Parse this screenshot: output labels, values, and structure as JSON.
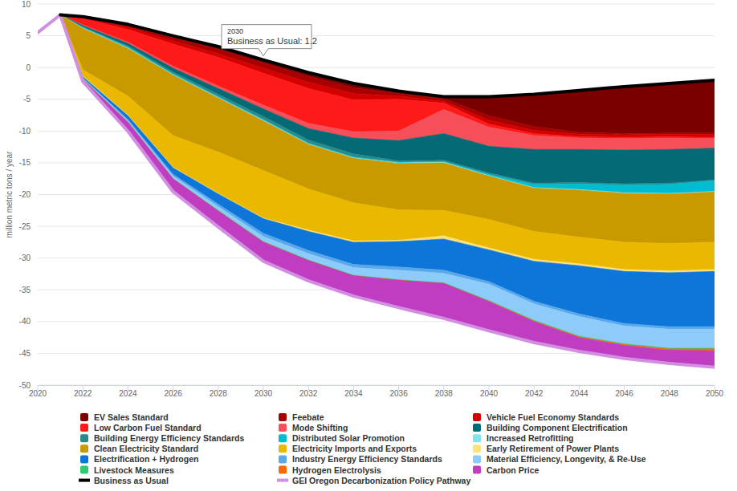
{
  "chart_data": {
    "type": "area",
    "stacked": true,
    "grid": true,
    "legend": "bottom",
    "y_label": "million metric tons / year",
    "x": [
      2020,
      2021,
      2022,
      2024,
      2026,
      2028,
      2030,
      2032,
      2034,
      2036,
      2038,
      2040,
      2042,
      2044,
      2046,
      2048,
      2050
    ],
    "xlim": [
      2020,
      2050
    ],
    "xticks": [
      2020,
      2022,
      2024,
      2026,
      2028,
      2030,
      2032,
      2034,
      2036,
      2038,
      2040,
      2042,
      2044,
      2046,
      2048,
      2050
    ],
    "ylim": [
      -50,
      10
    ],
    "yticks": [
      -50,
      -45,
      -40,
      -35,
      -30,
      -25,
      -20,
      -15,
      -10,
      -5,
      0,
      5,
      10
    ],
    "annotations": [
      {
        "x": 2030,
        "y": 1.2,
        "lines": [
          "2030",
          "Business as Usual: 1.2"
        ]
      }
    ],
    "series": [
      {
        "name": "EV Sales Standard",
        "color": "#7a0000",
        "values": [
          null,
          0,
          -0.1,
          -0.2,
          -0.3,
          -0.4,
          -0.5,
          -0.6,
          -0.7,
          -0.4,
          -0.3,
          -3.0,
          -5.1,
          -6.6,
          -7.4,
          -7.8,
          -8.3
        ]
      },
      {
        "name": "Feebate",
        "color": "#a80000",
        "values": [
          null,
          0,
          -0.1,
          -0.3,
          -0.5,
          -0.7,
          -0.8,
          -0.9,
          -0.9,
          -0.4,
          -0.4,
          -0.7,
          -0.6,
          -0.3,
          -0.2,
          -0.2,
          -0.2
        ]
      },
      {
        "name": "Vehicle Fuel Economy Standards",
        "color": "#d40000",
        "values": [
          null,
          0,
          -0.1,
          -0.3,
          -0.5,
          -0.6,
          -0.8,
          -1.0,
          -1.0,
          -0.5,
          -0.3,
          -0.6,
          -0.5,
          -0.4,
          -0.4,
          -0.4,
          -0.5
        ]
      },
      {
        "name": "Low Carbon Fuel Standard",
        "color": "#ff1a1a",
        "values": [
          null,
          0,
          -1.0,
          -2.0,
          -3.5,
          -4.5,
          -5.0,
          -5.5,
          -5.0,
          -5.0,
          -1.0,
          -0.5,
          -0.3,
          -0.2,
          -0.2,
          -0.2,
          -0.2
        ]
      },
      {
        "name": "Mode Shifting",
        "color": "#f5505a",
        "values": [
          null,
          0,
          -0.1,
          -0.2,
          -0.3,
          -0.4,
          -0.6,
          -0.8,
          -1.0,
          -1.5,
          -3.8,
          -3.0,
          -2.2,
          -1.8,
          -1.8,
          -1.8,
          -1.5
        ]
      },
      {
        "name": "Building Component Electrification",
        "color": "#046b76",
        "values": [
          null,
          0,
          -0.2,
          -0.4,
          -0.6,
          -0.9,
          -1.2,
          -1.8,
          -2.5,
          -3.2,
          -4.2,
          -4.2,
          -5.3,
          -5.2,
          -5.3,
          -5.3,
          -5.0
        ]
      },
      {
        "name": "Building Energy Efficiency Standards",
        "color": "#2a8a8c",
        "values": [
          null,
          0,
          -0.1,
          -0.2,
          -0.3,
          -0.4,
          -0.5,
          -0.5,
          -0.5,
          -0.2,
          -0.2,
          -0.2,
          -0.2,
          -0.2,
          -0.2,
          -0.2,
          -0.1
        ]
      },
      {
        "name": "Distributed Solar Promotion",
        "color": "#00bcd0",
        "values": [
          null,
          0,
          -0.05,
          -0.1,
          -0.1,
          -0.1,
          -0.1,
          -0.1,
          -0.1,
          -0.1,
          -0.1,
          -0.2,
          -0.5,
          -0.9,
          -1.2,
          -1.4,
          -1.7
        ]
      },
      {
        "name": "Increased Retrofitting",
        "color": "#80e4ec",
        "values": [
          null,
          0,
          -0.1,
          -0.1,
          -0.1,
          -0.1,
          -0.1,
          -0.1,
          -0.1,
          -0.1,
          -0.1,
          -0.1,
          -0.1,
          -0.1,
          -0.1,
          -0.1,
          -0.1
        ]
      },
      {
        "name": "Clean Electricity Standard",
        "color": "#c99a00",
        "values": [
          null,
          0,
          -6.5,
          -7.5,
          -9.5,
          -8.5,
          -7.8,
          -7.0,
          -7.0,
          -7.3,
          -7.5,
          -6.8,
          -6.8,
          -7.4,
          -7.7,
          -7.8,
          -7.9
        ]
      },
      {
        "name": "Electricity Imports and Exports",
        "color": "#eab800",
        "values": [
          null,
          0,
          -1.0,
          -3.0,
          -5.0,
          -6.5,
          -7.5,
          -6.5,
          -6.0,
          -4.8,
          -4.0,
          -4.5,
          -4.4,
          -4.2,
          -4.3,
          -4.3,
          -4.3
        ]
      },
      {
        "name": "Early Retirement of Power Plants",
        "color": "#ffe27a",
        "values": [
          null,
          0,
          -0.1,
          -0.1,
          -0.1,
          -0.1,
          -0.1,
          -0.2,
          -0.2,
          -0.2,
          -0.5,
          -0.3,
          -0.3,
          -0.3,
          -0.3,
          -0.3,
          -0.3
        ]
      },
      {
        "name": "Electrification + Hydrogen",
        "color": "#0e76d8",
        "values": [
          null,
          0,
          -0.2,
          -0.6,
          -1.0,
          -1.6,
          -2.3,
          -3.0,
          -3.5,
          -4.0,
          -4.9,
          -5.0,
          -6.3,
          -7.6,
          -8.2,
          -8.5,
          -8.7
        ]
      },
      {
        "name": "Industry Energy Efficiency Standards",
        "color": "#5aa8ea",
        "values": [
          null,
          0,
          -0.1,
          -0.2,
          -0.3,
          -0.4,
          -0.5,
          -0.5,
          -0.5,
          -0.5,
          -0.5,
          -0.4,
          -0.4,
          -0.4,
          -0.4,
          -0.4,
          -0.4
        ]
      },
      {
        "name": "Material Efficiency, Longevity, & Re-Use",
        "color": "#8dcbfb",
        "values": [
          null,
          0,
          -0.1,
          -0.2,
          -0.4,
          -0.6,
          -0.8,
          -1.0,
          -1.2,
          -1.5,
          -1.5,
          -2.6,
          -2.6,
          -3.1,
          -2.8,
          -3.0,
          -3.0
        ]
      },
      {
        "name": "Livestock Measures",
        "color": "#2ecc71",
        "values": [
          null,
          0,
          -0.05,
          -0.05,
          -0.05,
          -0.1,
          -0.1,
          -0.1,
          -0.1,
          -0.1,
          -0.1,
          -0.1,
          -0.1,
          -0.1,
          -0.1,
          -0.1,
          -0.1
        ]
      },
      {
        "name": "Hydrogen Electrolysis",
        "color": "#ff6a00",
        "values": [
          null,
          0,
          0,
          0,
          0,
          0,
          0,
          0,
          0,
          0,
          0,
          -0.05,
          -0.1,
          -0.1,
          -0.15,
          -0.2,
          -0.3
        ]
      },
      {
        "name": "Carbon Price",
        "color": "#c03cc0",
        "values": [
          null,
          0,
          -0.3,
          -1.4,
          -2.0,
          -2.5,
          -3.0,
          -3.2,
          -3.2,
          -4.3,
          -5.5,
          -4.6,
          -3.3,
          -2.2,
          -2.05,
          -2.1,
          -2.6
        ]
      },
      {
        "name": "Business as Usual",
        "color": "#000000",
        "type": "line",
        "values": [
          null,
          8.3,
          8.0,
          6.8,
          5.0,
          3.3,
          1.2,
          -0.8,
          -2.5,
          -3.7,
          -4.6,
          -4.6,
          -4.2,
          -3.6,
          -3.0,
          -2.5,
          -2.0
        ]
      },
      {
        "name": "GEI Oregon Decarbonization Policy Pathway",
        "color": "#d18fe2",
        "type": "line",
        "values": [
          5.5,
          8.3,
          -2.2,
          -10.05,
          -19.55,
          -25.1,
          -30.5,
          -33.6,
          -36.0,
          -37.8,
          -39.5,
          -41.45,
          -43.3,
          -44.7,
          -45.8,
          -46.6,
          -47.2
        ]
      }
    ]
  }
}
